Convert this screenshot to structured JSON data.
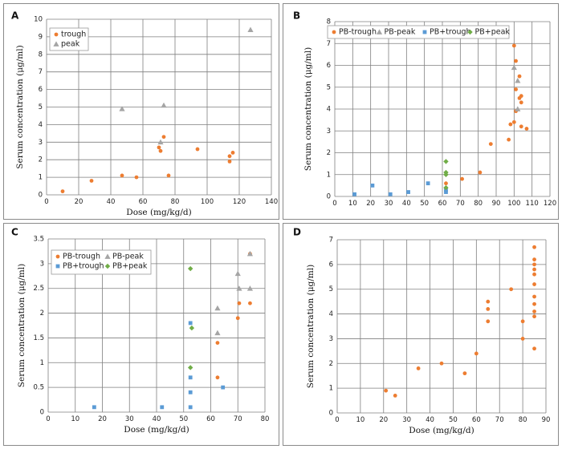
{
  "colors": {
    "trough": "#ED7D31",
    "peak": "#A5A5A5",
    "pb_trough": "#5B9BD5",
    "pb_peak": "#70AD47",
    "grid": "#7f7f7f"
  },
  "chart_data": [
    {
      "panel": "A",
      "type": "scatter",
      "xlabel": "Dose (mg/kg/d)",
      "ylabel": "Serum concentration (μg/ml)",
      "xlim": [
        0,
        140
      ],
      "ylim": [
        0,
        10
      ],
      "xticks": [
        "0",
        "20",
        "40",
        "60",
        "80",
        "100",
        "120",
        "140"
      ],
      "yticks": [
        "0",
        "1",
        "2",
        "3",
        "4",
        "5",
        "6",
        "7",
        "8",
        "9",
        "10"
      ],
      "grid": true,
      "legend": "top-left",
      "series": [
        {
          "name": "trough",
          "marker": "circle",
          "color_key": "trough",
          "points": [
            [
              10,
              0.2
            ],
            [
              28,
              0.8
            ],
            [
              47,
              1.1
            ],
            [
              56,
              1.0
            ],
            [
              70,
              2.7
            ],
            [
              71,
              2.5
            ],
            [
              73,
              3.3
            ],
            [
              76,
              1.1
            ],
            [
              94,
              2.6
            ],
            [
              114,
              1.9
            ],
            [
              114,
              2.2
            ],
            [
              116,
              2.4
            ]
          ]
        },
        {
          "name": "peak",
          "marker": "triangle",
          "color_key": "peak",
          "points": [
            [
              47,
              4.9
            ],
            [
              71,
              3.0
            ],
            [
              73,
              5.1
            ],
            [
              127,
              9.4
            ]
          ]
        }
      ]
    },
    {
      "panel": "B",
      "type": "scatter",
      "xlabel": "",
      "ylabel": "Serum concentration (μg/ml)",
      "xlim": [
        0,
        120
      ],
      "ylim": [
        0,
        8
      ],
      "xticks": [
        "0",
        "10",
        "20",
        "30",
        "40",
        "50",
        "60",
        "70",
        "80",
        "90",
        "100",
        "110",
        "120"
      ],
      "yticks": [
        "0",
        "1",
        "2",
        "3",
        "4",
        "5",
        "6",
        "7",
        "8"
      ],
      "grid": true,
      "legend": "top",
      "series": [
        {
          "name": "PB-trough",
          "marker": "circle",
          "color_key": "trough",
          "points": [
            [
              62,
              0.6
            ],
            [
              71,
              0.8
            ],
            [
              81,
              1.1
            ],
            [
              87,
              2.4
            ],
            [
              97,
              2.6
            ],
            [
              98,
              3.3
            ],
            [
              100,
              3.4
            ],
            [
              101,
              3.9
            ],
            [
              101,
              4.9
            ],
            [
              103,
              4.5
            ],
            [
              104,
              4.6
            ],
            [
              104,
              4.3
            ],
            [
              104,
              3.2
            ],
            [
              107,
              3.1
            ],
            [
              100,
              6.9
            ],
            [
              101,
              6.2
            ],
            [
              103,
              5.5
            ]
          ]
        },
        {
          "name": "PB-peak",
          "marker": "triangle",
          "color_key": "peak",
          "points": [
            [
              100,
              5.9
            ],
            [
              102,
              5.3
            ],
            [
              102,
              4.0
            ]
          ]
        },
        {
          "name": "PB+trough",
          "marker": "square",
          "color_key": "pb_trough",
          "points": [
            [
              11,
              0.1
            ],
            [
              21,
              0.5
            ],
            [
              31,
              0.1
            ],
            [
              41,
              0.2
            ],
            [
              52,
              0.6
            ],
            [
              62,
              0.2
            ],
            [
              62,
              0.3
            ]
          ]
        },
        {
          "name": "PB+peak",
          "marker": "diamond",
          "color_key": "pb_peak",
          "points": [
            [
              62,
              1.6
            ],
            [
              62,
              1.1
            ],
            [
              62,
              1.0
            ],
            [
              62,
              0.4
            ]
          ]
        }
      ]
    },
    {
      "panel": "C",
      "type": "scatter",
      "xlabel": "Dose (mg/kg/d)",
      "ylabel": "Serum concentration (μg/ml)",
      "xlim": [
        0,
        80
      ],
      "ylim": [
        0,
        3.5
      ],
      "xticks": [
        "0",
        "10",
        "20",
        "30",
        "40",
        "50",
        "60",
        "70",
        "80"
      ],
      "yticks": [
        "0",
        "0.5",
        "1",
        "1.5",
        "2",
        "2.5",
        "3",
        "3.5"
      ],
      "grid": true,
      "legend": "top-left",
      "series": [
        {
          "name": "PB-trough",
          "marker": "circle",
          "color_key": "trough",
          "points": [
            [
              62.5,
              0.7
            ],
            [
              62.5,
              1.4
            ],
            [
              70,
              1.9
            ],
            [
              70.5,
              2.2
            ],
            [
              74.5,
              2.2
            ],
            [
              74.5,
              3.2
            ]
          ]
        },
        {
          "name": "PB-peak",
          "marker": "triangle",
          "color_key": "peak",
          "points": [
            [
              62.5,
              1.6
            ],
            [
              62.5,
              2.1
            ],
            [
              70,
              2.8
            ],
            [
              70.5,
              2.5
            ],
            [
              74.5,
              2.5
            ],
            [
              74.5,
              3.2
            ]
          ]
        },
        {
          "name": "PB+trough",
          "marker": "square",
          "color_key": "pb_trough",
          "points": [
            [
              17,
              0.1
            ],
            [
              42,
              0.1
            ],
            [
              52.5,
              0.1
            ],
            [
              52.5,
              0.4
            ],
            [
              52.5,
              0.7
            ],
            [
              52.5,
              1.8
            ],
            [
              64.5,
              0.5
            ]
          ]
        },
        {
          "name": "PB+peak",
          "marker": "diamond",
          "color_key": "pb_peak",
          "points": [
            [
              52.5,
              2.9
            ],
            [
              53,
              1.7
            ],
            [
              52.5,
              0.9
            ]
          ]
        }
      ]
    },
    {
      "panel": "D",
      "type": "scatter",
      "xlabel": "Dose (mg/kg/d)",
      "ylabel": "Serum concentration (μg/ml)",
      "xlim": [
        0,
        90
      ],
      "ylim": [
        0,
        7
      ],
      "xticks": [
        "0",
        "10",
        "20",
        "30",
        "40",
        "50",
        "60",
        "70",
        "80",
        "90"
      ],
      "yticks": [
        "0",
        "1",
        "2",
        "3",
        "4",
        "5",
        "6",
        "7"
      ],
      "grid": true,
      "legend": "",
      "series": [
        {
          "name": "",
          "marker": "circle",
          "color_key": "trough",
          "points": [
            [
              21,
              0.9
            ],
            [
              25,
              0.7
            ],
            [
              35,
              1.8
            ],
            [
              45,
              2.0
            ],
            [
              55,
              1.6
            ],
            [
              60,
              2.4
            ],
            [
              65,
              3.7
            ],
            [
              65,
              4.2
            ],
            [
              65,
              4.5
            ],
            [
              75,
              5.0
            ],
            [
              80,
              3.7
            ],
            [
              80,
              3.0
            ],
            [
              85,
              2.6
            ],
            [
              85,
              3.9
            ],
            [
              85,
              4.1
            ],
            [
              85,
              4.4
            ],
            [
              85,
              4.7
            ],
            [
              85,
              5.2
            ],
            [
              85,
              5.6
            ],
            [
              85,
              5.8
            ],
            [
              85,
              6.0
            ],
            [
              85,
              6.2
            ],
            [
              85,
              6.7
            ]
          ]
        }
      ]
    }
  ]
}
